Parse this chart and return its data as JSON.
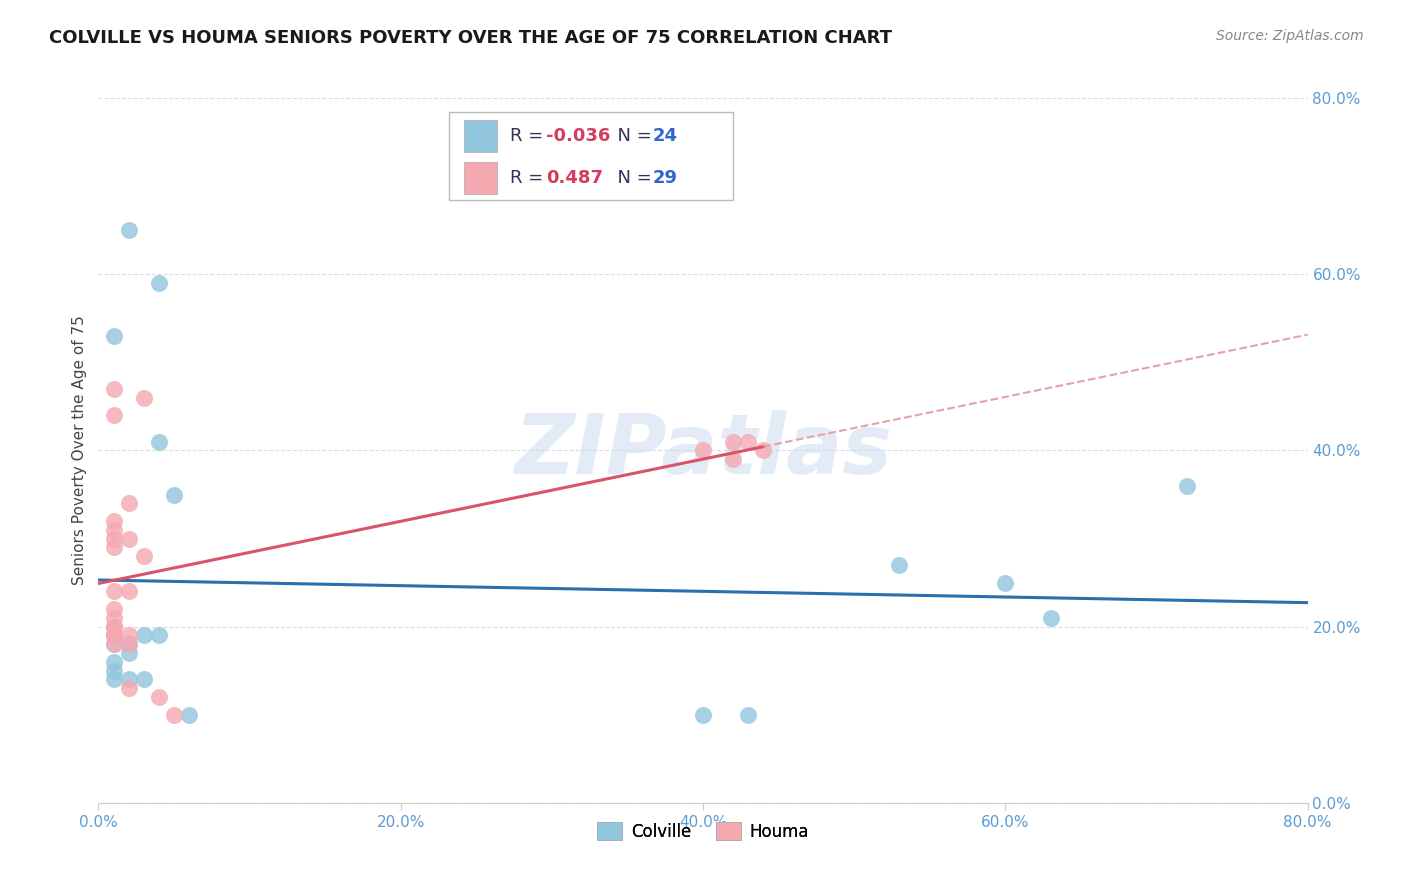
{
  "title": "COLVILLE VS HOUMA SENIORS POVERTY OVER THE AGE OF 75 CORRELATION CHART",
  "source": "Source: ZipAtlas.com",
  "ylabel": "Seniors Poverty Over the Age of 75",
  "xlim": [
    0.0,
    0.8
  ],
  "ylim": [
    0.0,
    0.8
  ],
  "colville_color": "#92c5de",
  "houma_color": "#f4a8b0",
  "colville_R": "-0.036",
  "colville_N": "24",
  "houma_R": "0.487",
  "houma_N": "29",
  "colville_line_color": "#2c6fad",
  "houma_line_color": "#d9536a",
  "houma_line_dashed_color": "#e8a0a8",
  "background_color": "#ffffff",
  "grid_color": "#dddddd",
  "watermark": "ZIPatlas",
  "colville_points": [
    [
      0.01,
      0.53
    ],
    [
      0.02,
      0.65
    ],
    [
      0.04,
      0.59
    ],
    [
      0.04,
      0.41
    ],
    [
      0.05,
      0.35
    ],
    [
      0.01,
      0.2
    ],
    [
      0.01,
      0.19
    ],
    [
      0.01,
      0.18
    ],
    [
      0.02,
      0.18
    ],
    [
      0.02,
      0.17
    ],
    [
      0.03,
      0.19
    ],
    [
      0.01,
      0.16
    ],
    [
      0.01,
      0.15
    ],
    [
      0.01,
      0.14
    ],
    [
      0.02,
      0.14
    ],
    [
      0.03,
      0.14
    ],
    [
      0.04,
      0.19
    ],
    [
      0.06,
      0.1
    ],
    [
      0.4,
      0.1
    ],
    [
      0.43,
      0.1
    ],
    [
      0.53,
      0.27
    ],
    [
      0.6,
      0.25
    ],
    [
      0.63,
      0.21
    ],
    [
      0.72,
      0.36
    ]
  ],
  "houma_points": [
    [
      0.01,
      0.47
    ],
    [
      0.01,
      0.44
    ],
    [
      0.01,
      0.32
    ],
    [
      0.01,
      0.31
    ],
    [
      0.01,
      0.3
    ],
    [
      0.01,
      0.29
    ],
    [
      0.01,
      0.24
    ],
    [
      0.01,
      0.22
    ],
    [
      0.01,
      0.21
    ],
    [
      0.01,
      0.2
    ],
    [
      0.01,
      0.2
    ],
    [
      0.01,
      0.19
    ],
    [
      0.01,
      0.19
    ],
    [
      0.01,
      0.18
    ],
    [
      0.02,
      0.34
    ],
    [
      0.02,
      0.3
    ],
    [
      0.02,
      0.24
    ],
    [
      0.02,
      0.19
    ],
    [
      0.02,
      0.18
    ],
    [
      0.02,
      0.13
    ],
    [
      0.03,
      0.46
    ],
    [
      0.03,
      0.28
    ],
    [
      0.04,
      0.12
    ],
    [
      0.05,
      0.1
    ],
    [
      0.4,
      0.4
    ],
    [
      0.42,
      0.39
    ],
    [
      0.42,
      0.41
    ],
    [
      0.43,
      0.41
    ],
    [
      0.44,
      0.4
    ]
  ],
  "title_fontsize": 13,
  "axis_label_fontsize": 11,
  "tick_fontsize": 11,
  "legend_fontsize": 13,
  "source_fontsize": 10,
  "tick_color": "#5b9bd5"
}
